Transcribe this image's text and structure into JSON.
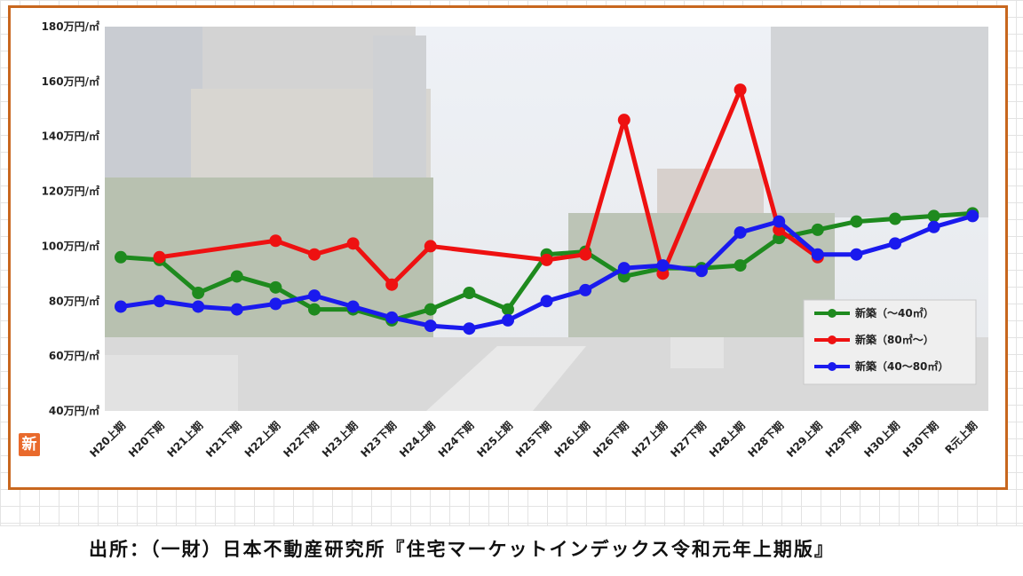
{
  "chart_data": {
    "type": "line",
    "title": "",
    "xlabel": "",
    "ylabel": "",
    "ylim": [
      40,
      180
    ],
    "yticks": [
      "40万円/㎡",
      "60万円/㎡",
      "80万円/㎡",
      "100万円/㎡",
      "120万円/㎡",
      "140万円/㎡",
      "160万円/㎡",
      "180万円/㎡"
    ],
    "ytick_values": [
      40,
      60,
      80,
      100,
      120,
      140,
      160,
      180
    ],
    "categories": [
      "H20上期",
      "H20下期",
      "H21上期",
      "H21下期",
      "H22上期",
      "H22下期",
      "H23上期",
      "H23下期",
      "H24上期",
      "H24下期",
      "H25上期",
      "H25下期",
      "H26上期",
      "H26下期",
      "H27上期",
      "H27下期",
      "H28上期",
      "H28下期",
      "H29上期",
      "H29下期",
      "H30上期",
      "H30下期",
      "R元上期"
    ],
    "legend_position": "right",
    "series": [
      {
        "name": "新築（～40㎡）",
        "color": "#1e8a1e",
        "values": [
          96,
          95,
          83,
          89,
          85,
          77,
          77,
          73,
          77,
          83,
          77,
          97,
          98,
          89,
          92,
          92,
          93,
          103,
          106,
          109,
          110,
          111,
          112
        ]
      },
      {
        "name": "新築（80㎡～）",
        "color": "#ee1111",
        "values": [
          null,
          96,
          null,
          null,
          102,
          97,
          101,
          86,
          100,
          null,
          null,
          95,
          97,
          146,
          90,
          null,
          157,
          106,
          96,
          null,
          null,
          null,
          null
        ]
      },
      {
        "name": "新築（40～80㎡）",
        "color": "#1a1aee",
        "values": [
          78,
          80,
          78,
          77,
          79,
          82,
          78,
          74,
          71,
          70,
          73,
          80,
          84,
          92,
          93,
          91,
          105,
          109,
          97,
          97,
          101,
          107,
          111
        ]
      }
    ]
  },
  "badge": "新",
  "source": "出所：（一財）日本不動産研究所『住宅マーケットインデックス令和元年上期版』"
}
